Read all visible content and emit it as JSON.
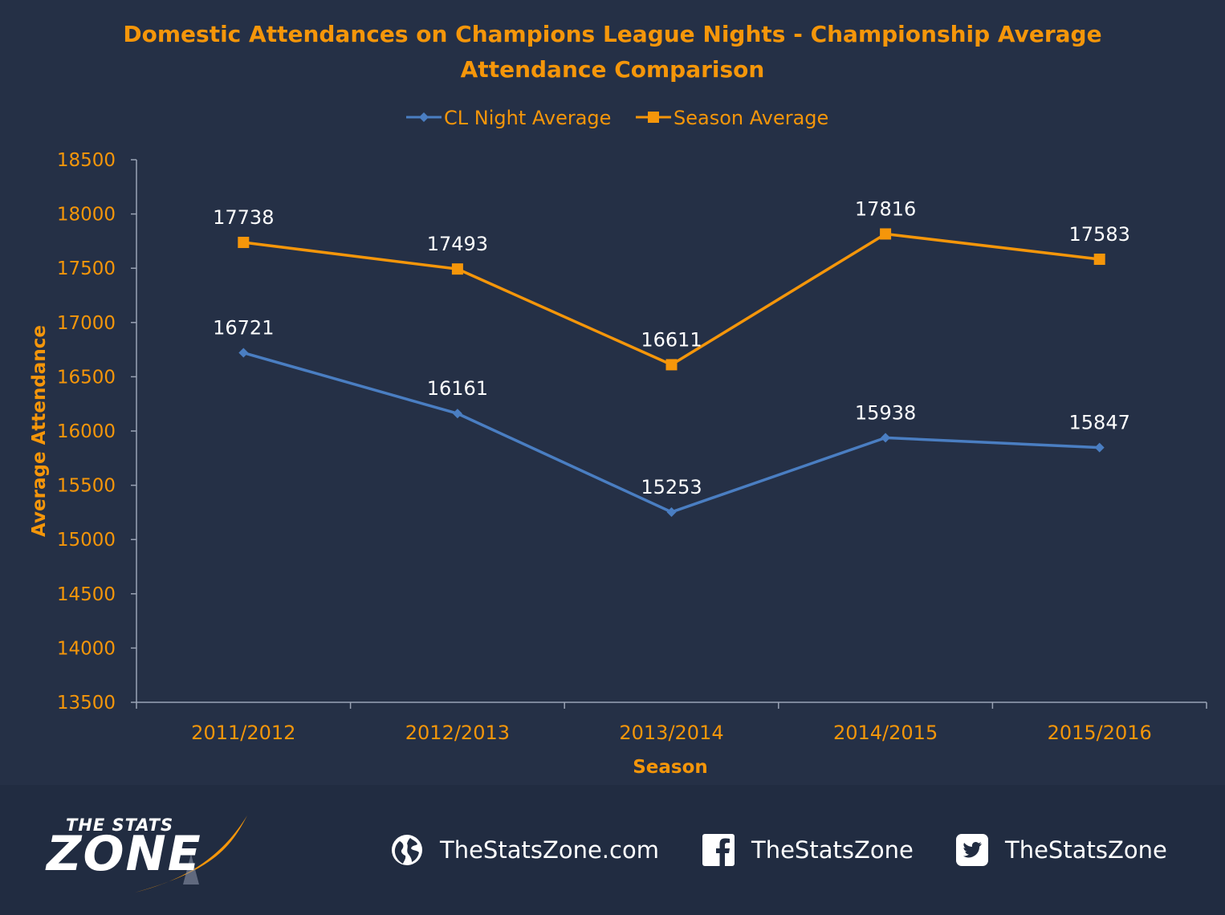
{
  "chart_data": {
    "type": "line",
    "title": "Domestic Attendances on Champions League Nights - Championship Average Attendance Comparison",
    "title_lines": [
      "Domestic Attendances on Champions League Nights - Championship Average",
      "Attendance Comparison"
    ],
    "xlabel": "Season",
    "ylabel": "Average Attendance",
    "categories": [
      "2011/2012",
      "2012/2013",
      "2013/2014",
      "2014/2015",
      "2015/2016"
    ],
    "ylim": [
      13500,
      18500
    ],
    "ytick_step": 500,
    "grid": false,
    "legend_position": "top",
    "series": [
      {
        "name": "CL Night Average",
        "values": [
          16721,
          16161,
          15253,
          15938,
          15847
        ],
        "color": "#4a7ec2",
        "marker": "diamond"
      },
      {
        "name": "Season Average",
        "values": [
          17738,
          17493,
          16611,
          17816,
          17583
        ],
        "color": "#f5960a",
        "marker": "square"
      }
    ],
    "data_labels": true
  },
  "colors": {
    "background": "#253046",
    "title": "#f5960a",
    "axis_text": "#f5960a",
    "data_label": "#ffffff",
    "axis_line": "#9aa3b5"
  },
  "footer": {
    "logo_top": "THE STATS",
    "logo_bottom": "ZONE",
    "links": [
      {
        "icon": "globe-icon",
        "label": "TheStatsZone.com"
      },
      {
        "icon": "facebook-icon",
        "label": "TheStatsZone"
      },
      {
        "icon": "twitter-icon",
        "label": "TheStatsZone"
      }
    ]
  }
}
